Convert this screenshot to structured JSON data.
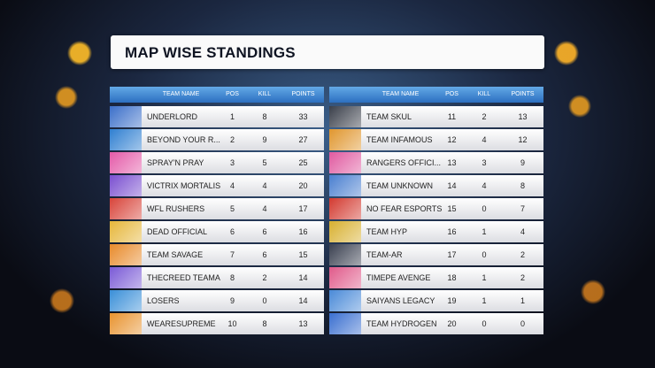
{
  "header": {
    "title": "MAP WISE STANDINGS"
  },
  "tables": [
    {
      "columns": [
        "TEAM NAME",
        "POS",
        "KILL",
        "POINTS"
      ],
      "rows": [
        [
          "UNDERLORD",
          1,
          8,
          33
        ],
        [
          "BEYOND YOUR R...",
          2,
          9,
          27
        ],
        [
          "SPRAY'N PRAY",
          3,
          5,
          25
        ],
        [
          "VICTRIX MORTALIS",
          4,
          4,
          20
        ],
        [
          "WFL RUSHERS",
          5,
          4,
          17
        ],
        [
          "DEAD OFFICIAL",
          6,
          6,
          16
        ],
        [
          "TEAM SAVAGE",
          7,
          6,
          15
        ],
        [
          "THECREED TEAMA",
          8,
          2,
          14
        ],
        [
          "LOSERS",
          9,
          0,
          14
        ],
        [
          "WEARESUPREME",
          10,
          8,
          13
        ]
      ]
    },
    {
      "columns": [
        "TEAM NAME",
        "POS",
        "KILL",
        "POINTS"
      ],
      "rows": [
        [
          "TEAM SKUL",
          11,
          2,
          13
        ],
        [
          "TEAM INFAMOUS",
          12,
          4,
          12
        ],
        [
          "RANGERS OFFICI...",
          13,
          3,
          9
        ],
        [
          "TEAM UNKNOWN",
          14,
          4,
          8
        ],
        [
          "NO FEAR ESPORTS",
          15,
          0,
          7
        ],
        [
          "TEAM HYP",
          16,
          1,
          4
        ],
        [
          "TEAM-AR",
          17,
          0,
          2
        ],
        [
          "TIMEPE AVENGE",
          18,
          1,
          2
        ],
        [
          "SAIYANS LEGACY",
          19,
          1,
          1
        ],
        [
          "TEAM HYDROGEN",
          20,
          0,
          0
        ]
      ]
    }
  ]
}
